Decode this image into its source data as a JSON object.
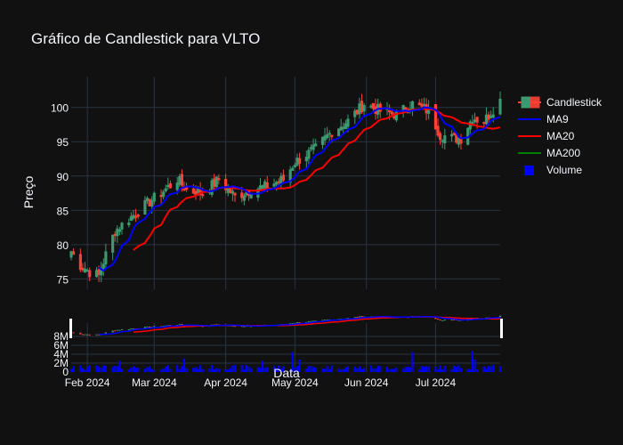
{
  "chart_data": {
    "type": "candlestick",
    "title": "Gráfico de Candlestick para VLTO",
    "ylabel": "Preço",
    "xlabel": "Data",
    "ylim": [
      73.5,
      104.5
    ],
    "yticks": [
      75,
      80,
      85,
      90,
      95,
      100
    ],
    "volume_yticks": [
      0,
      2000000,
      4000000,
      6000000,
      8000000
    ],
    "volume_ytick_labels": [
      "0",
      "2M",
      "4M",
      "6M",
      "8M"
    ],
    "volume_ylim": [
      0,
      10000000
    ],
    "x_range": [
      "2024-01-25",
      "2024-07-29"
    ],
    "x_ticks": [
      "2024-02-01",
      "2024-03-01",
      "2024-04-01",
      "2024-05-01",
      "2024-06-01",
      "2024-07-01"
    ],
    "x_tick_labels": [
      "Feb 2024",
      "Mar 2024",
      "Apr 2024",
      "May 2024",
      "Jun 2024",
      "Jul 2024"
    ],
    "legend_position": "right",
    "colors": {
      "background": "#111111",
      "grid": "#283442",
      "increasing": "#3d9970",
      "decreasing": "#ff4136",
      "ma9": "#0000ff",
      "ma20": "#ff0000",
      "ma200": "#008000",
      "volume": "#0000ff"
    },
    "series": [
      {
        "name": "Candlestick",
        "kind": "candlestick"
      },
      {
        "name": "MA9",
        "kind": "line"
      },
      {
        "name": "MA20",
        "kind": "line"
      },
      {
        "name": "MA200",
        "kind": "line"
      },
      {
        "name": "Volume",
        "kind": "bar"
      }
    ],
    "close_anchors": [
      [
        "2024-01-25",
        79
      ],
      [
        "2024-01-29",
        77
      ],
      [
        "2024-02-02",
        76
      ],
      [
        "2024-02-06",
        75.5
      ],
      [
        "2024-02-09",
        78.5
      ],
      [
        "2024-02-13",
        82
      ],
      [
        "2024-02-20",
        84
      ],
      [
        "2024-02-27",
        86
      ],
      [
        "2024-03-04",
        87.5
      ],
      [
        "2024-03-11",
        89.5
      ],
      [
        "2024-03-15",
        88
      ],
      [
        "2024-03-22",
        87.5
      ],
      [
        "2024-03-29",
        89.5
      ],
      [
        "2024-04-05",
        87
      ],
      [
        "2024-04-12",
        88
      ],
      [
        "2024-04-19",
        88.5
      ],
      [
        "2024-04-26",
        89.5
      ],
      [
        "2024-05-01",
        92
      ],
      [
        "2024-05-10",
        94
      ],
      [
        "2024-05-17",
        96.5
      ],
      [
        "2024-05-24",
        98
      ],
      [
        "2024-05-31",
        100.5
      ],
      [
        "2024-06-07",
        99.5
      ],
      [
        "2024-06-14",
        99
      ],
      [
        "2024-06-21",
        100.5
      ],
      [
        "2024-06-28",
        99.5
      ],
      [
        "2024-07-03",
        96
      ],
      [
        "2024-07-08",
        95.5
      ],
      [
        "2024-07-12",
        95.5
      ],
      [
        "2024-07-17",
        98.5
      ],
      [
        "2024-07-22",
        98
      ],
      [
        "2024-07-29",
        101
      ]
    ],
    "volume_spikes": [
      [
        "2024-02-15",
        2500000
      ],
      [
        "2024-03-14",
        3000000
      ],
      [
        "2024-04-17",
        2500000
      ],
      [
        "2024-04-30",
        4500000
      ],
      [
        "2024-05-03",
        2800000
      ],
      [
        "2024-06-21",
        4500000
      ],
      [
        "2024-07-17",
        4700000
      ],
      [
        "2024-07-18",
        2800000
      ]
    ]
  }
}
